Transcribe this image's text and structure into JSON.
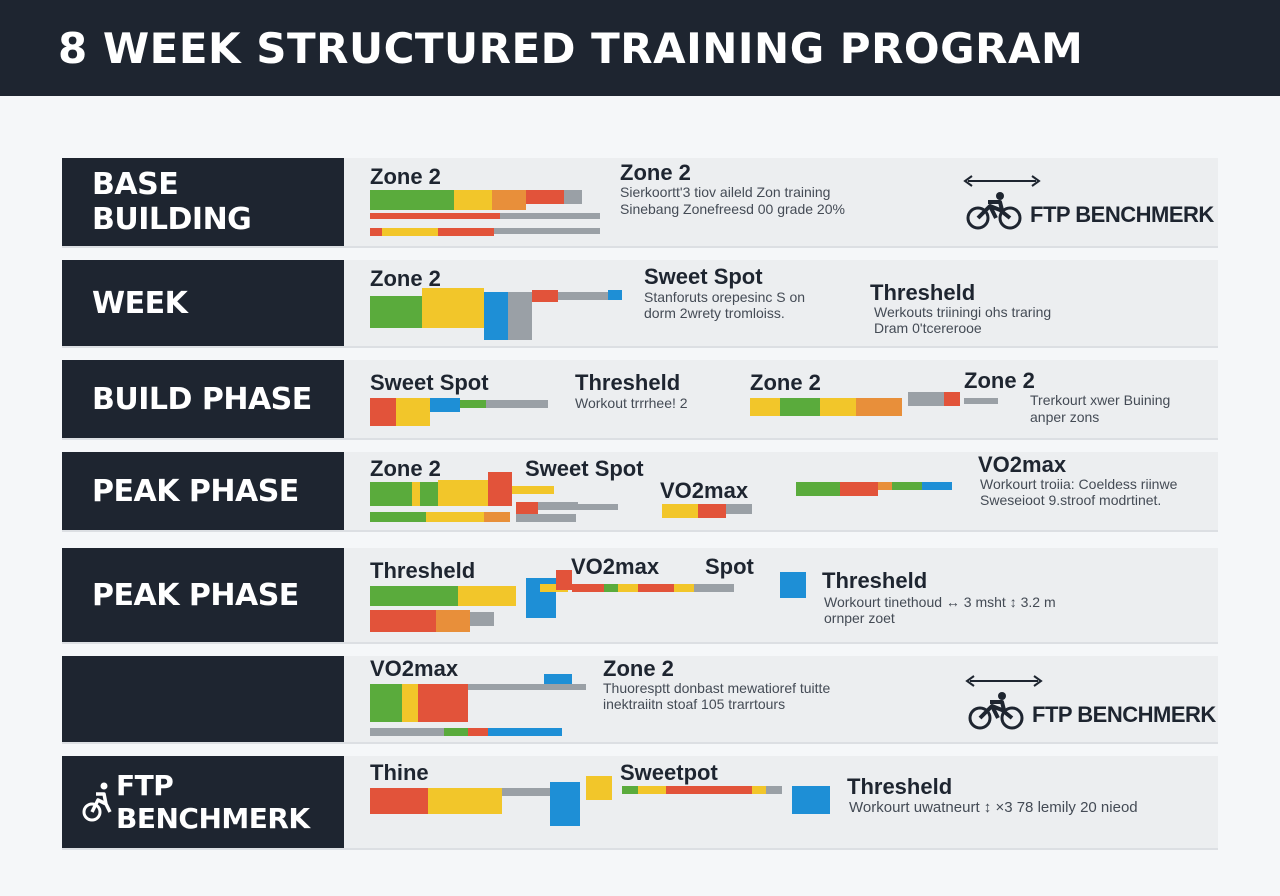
{
  "title": "8 WEEK STRUCTURED TRAINING PROGRAM",
  "colors": {
    "green": "#5aab3c",
    "yellow": "#f2c62a",
    "orange": "#e88f3a",
    "red": "#e2533a",
    "blue": "#1e8fd6",
    "gray": "#9aa0a6",
    "dark": "#1e2530"
  },
  "rows": [
    {
      "label": "BASE BUILDING",
      "heads": [
        "Zone 2",
        "Zone 2"
      ],
      "desc": [
        "Sierkoortt'3 tiov aileld Zon training",
        "Sinebang Zonefreesd 00 grade 20%"
      ],
      "ftp": "FTP BENCHMERK"
    },
    {
      "label": "WEEK",
      "heads": [
        "Zone 2",
        "Sweet Spot",
        "Thresheld"
      ],
      "desc": [
        "Stanforuts orepesinc S on",
        "dorm 2wrety tromloiss.",
        "Werkouts triiningi ohs traring",
        "Dram 0'tcererooe"
      ]
    },
    {
      "label": "BUILD PHASE",
      "heads": [
        "Sweet Spot",
        "Thresheld",
        "Zone 2",
        "Zone 2"
      ],
      "desc": [
        "Workout trrrhee! 2",
        "Trerkourt xwer Buining",
        "anper zons"
      ]
    },
    {
      "label": "PEAK PHASE",
      "heads": [
        "Zone 2",
        "Sweet Spot",
        "VO2max",
        "VO2max"
      ],
      "desc": [
        "Workourt troiia: Coeldess riinwe",
        "Sweseioot 9.stroof modrtinet."
      ]
    },
    {
      "label": "PEAK PHASE",
      "heads": [
        "Thresheld",
        "VO2max",
        "Spot",
        "Thresheld"
      ],
      "desc": [
        "Workourt tinethoud ↔ 3 msht ↕ 3.2 m",
        "ornper zoet"
      ]
    },
    {
      "label": "",
      "heads": [
        "VO2max",
        "Zone 2"
      ],
      "desc": [
        "Thuoresptt donbast mewatioref tuitte",
        "inektraiitn stoaf 105 trarrtours"
      ],
      "ftp": "FTP BENCHMERK"
    },
    {
      "label": "FTP BENCHMERK",
      "heads": [
        "Thine",
        "Sweetpot",
        "Thresheld"
      ],
      "desc": [
        "Workourt uwatneurt ↕ ×3 78 lemily 20 nieod"
      ]
    }
  ]
}
